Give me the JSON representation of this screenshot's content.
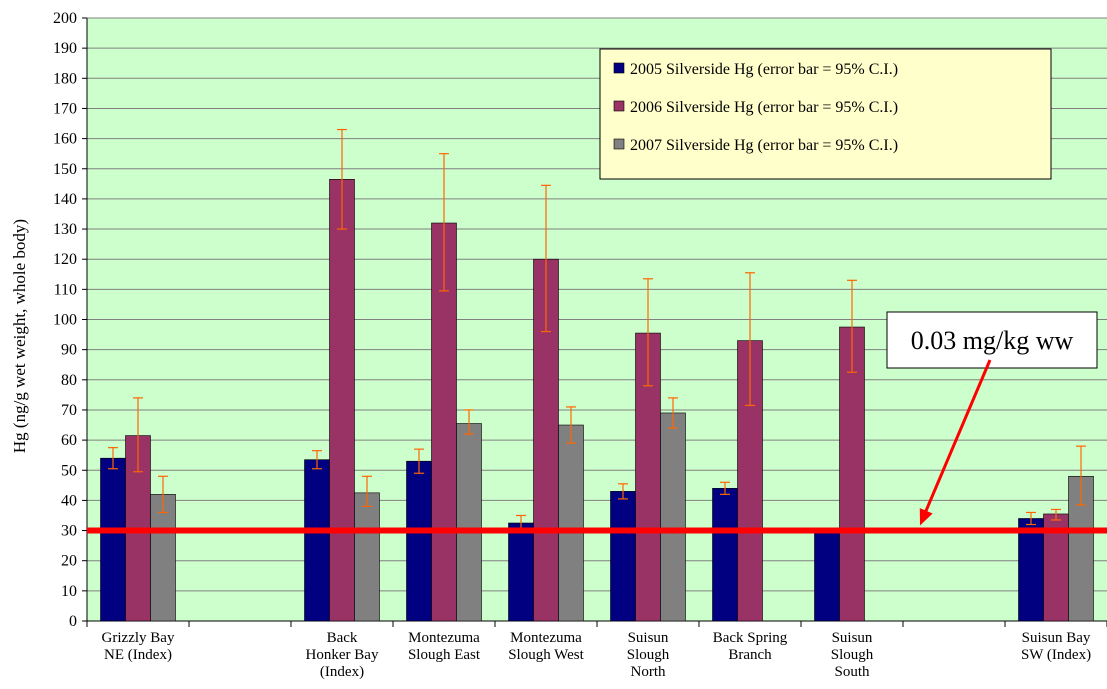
{
  "chart_data": {
    "type": "bar",
    "title": "",
    "xlabel": "",
    "ylabel": "Hg (ng/g wet weight, whole body)",
    "ylim": [
      0,
      200
    ],
    "ytick_step": 10,
    "grid": true,
    "legend_position": "top-right",
    "categories": [
      [
        "Grizzly Bay",
        "NE (Index)"
      ],
      [],
      [
        "Back",
        "Honker Bay",
        "(Index)"
      ],
      [
        "Montezuma",
        "Slough East"
      ],
      [
        "Montezuma",
        "Slough West"
      ],
      [
        "Suisun",
        "Slough",
        "North"
      ],
      [
        "Back Spring",
        "Branch"
      ],
      [
        "Suisun",
        "Slough",
        "South"
      ],
      [],
      [
        "Suisun Bay",
        "SW (Index)"
      ]
    ],
    "series": [
      {
        "name": "2005 Silverside Hg (error bar = 95% C.I.)",
        "color": "#000080",
        "values": [
          54,
          null,
          53.5,
          53,
          32.5,
          43,
          44,
          30.5,
          null,
          34
        ],
        "err_low": [
          50.5,
          null,
          50.5,
          49,
          30,
          40.5,
          42,
          null,
          null,
          32
        ],
        "err_high": [
          57.5,
          null,
          56.5,
          57,
          35,
          45.5,
          46,
          null,
          null,
          36
        ]
      },
      {
        "name": "2006 Silverside Hg (error bar = 95% C.I.)",
        "color": "#993366",
        "values": [
          61.5,
          null,
          146.5,
          132,
          120,
          95.5,
          93,
          97.5,
          null,
          35.5
        ],
        "err_low": [
          49.5,
          null,
          130,
          109.5,
          96,
          78,
          71.5,
          82.5,
          null,
          33.5
        ],
        "err_high": [
          74,
          null,
          163,
          155,
          144.5,
          113.5,
          115.5,
          113,
          null,
          37
        ]
      },
      {
        "name": "2007 Silverside Hg (error bar = 95% C.I.)",
        "color": "#808080",
        "values": [
          42,
          null,
          42.5,
          65.5,
          65,
          69,
          null,
          null,
          null,
          48
        ],
        "err_low": [
          36,
          null,
          38,
          62,
          59,
          64,
          null,
          null,
          null,
          38.5
        ],
        "err_high": [
          48,
          null,
          48,
          70,
          71,
          74,
          null,
          null,
          null,
          58
        ]
      }
    ],
    "reference_line": {
      "value": 30,
      "color": "#ff0000"
    },
    "annotation": {
      "text": "0.03 mg/kg ww",
      "arrow_color": "#ff0000"
    },
    "colors": {
      "plot_background": "#ccffcc",
      "legend_background": "#ffffcc",
      "error_bar": "#ff6600"
    }
  }
}
